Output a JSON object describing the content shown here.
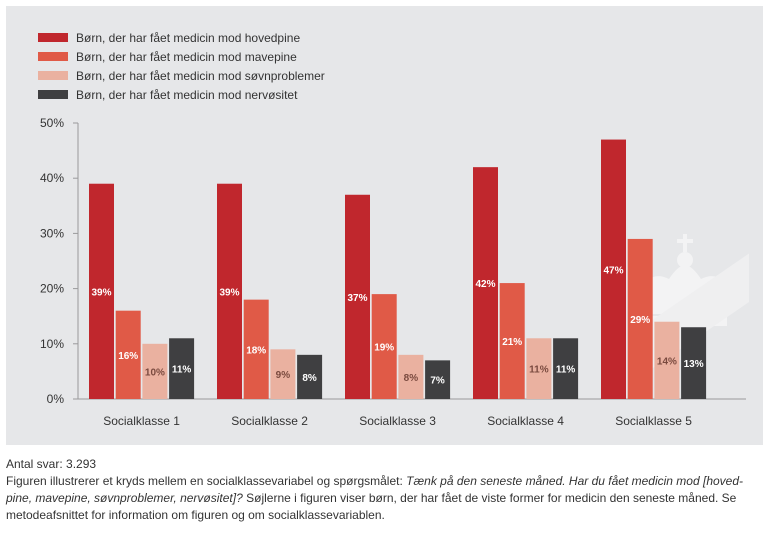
{
  "chart_data": {
    "type": "bar",
    "categories": [
      "Socialklasse 1",
      "Socialklasse 2",
      "Socialklasse 3",
      "Socialklasse 4",
      "Socialklasse 5"
    ],
    "series": [
      {
        "name": "Børn, der har fået medicin mod hovedpine",
        "color": "#c0272d",
        "values": [
          39,
          39,
          37,
          42,
          47
        ],
        "labels": [
          "39%",
          "39%",
          "37%",
          "42%",
          "47%"
        ]
      },
      {
        "name": "Børn, der har fået medicin mod mavepine",
        "color": "#e05a47",
        "values": [
          16,
          18,
          19,
          21,
          29
        ],
        "labels": [
          "16%",
          "18%",
          "19%",
          "21%",
          "29%"
        ]
      },
      {
        "name": "Børn, der har fået medicin mod søvnproblemer",
        "color": "#eab1a0",
        "values": [
          10,
          9,
          8,
          11,
          14
        ],
        "labels": [
          "10%",
          "9%",
          "8%",
          "11%",
          "14%"
        ]
      },
      {
        "name": "Børn, der har fået medicin mod nervøsitet",
        "color": "#3f3f41",
        "values": [
          11,
          8,
          7,
          11,
          13
        ],
        "labels": [
          "11%",
          "8%",
          "7%",
          "11%",
          "13%"
        ]
      }
    ],
    "ylim": [
      0,
      50
    ],
    "yticks": [
      "0%",
      "10%",
      "20%",
      "30%",
      "40%",
      "50%"
    ],
    "grid": false,
    "legend_position": "top-left"
  },
  "footer": {
    "count": "Antal svar: 3.293",
    "caption_intro": "Figuren illustrerer et kryds mellem en socialklassevariabel og spørgsmålet: ",
    "caption_question": "Tænk på den seneste måned. Har du fået medicin mod [hoved-pine, mavepine, søvnproblemer, nervøsitet]?",
    "caption_rest": " Søjlerne i figuren viser børn, der har fået de viste former for medicin den seneste måned. Se metodeafsnittet for information om figuren og om socialklassevariablen."
  }
}
